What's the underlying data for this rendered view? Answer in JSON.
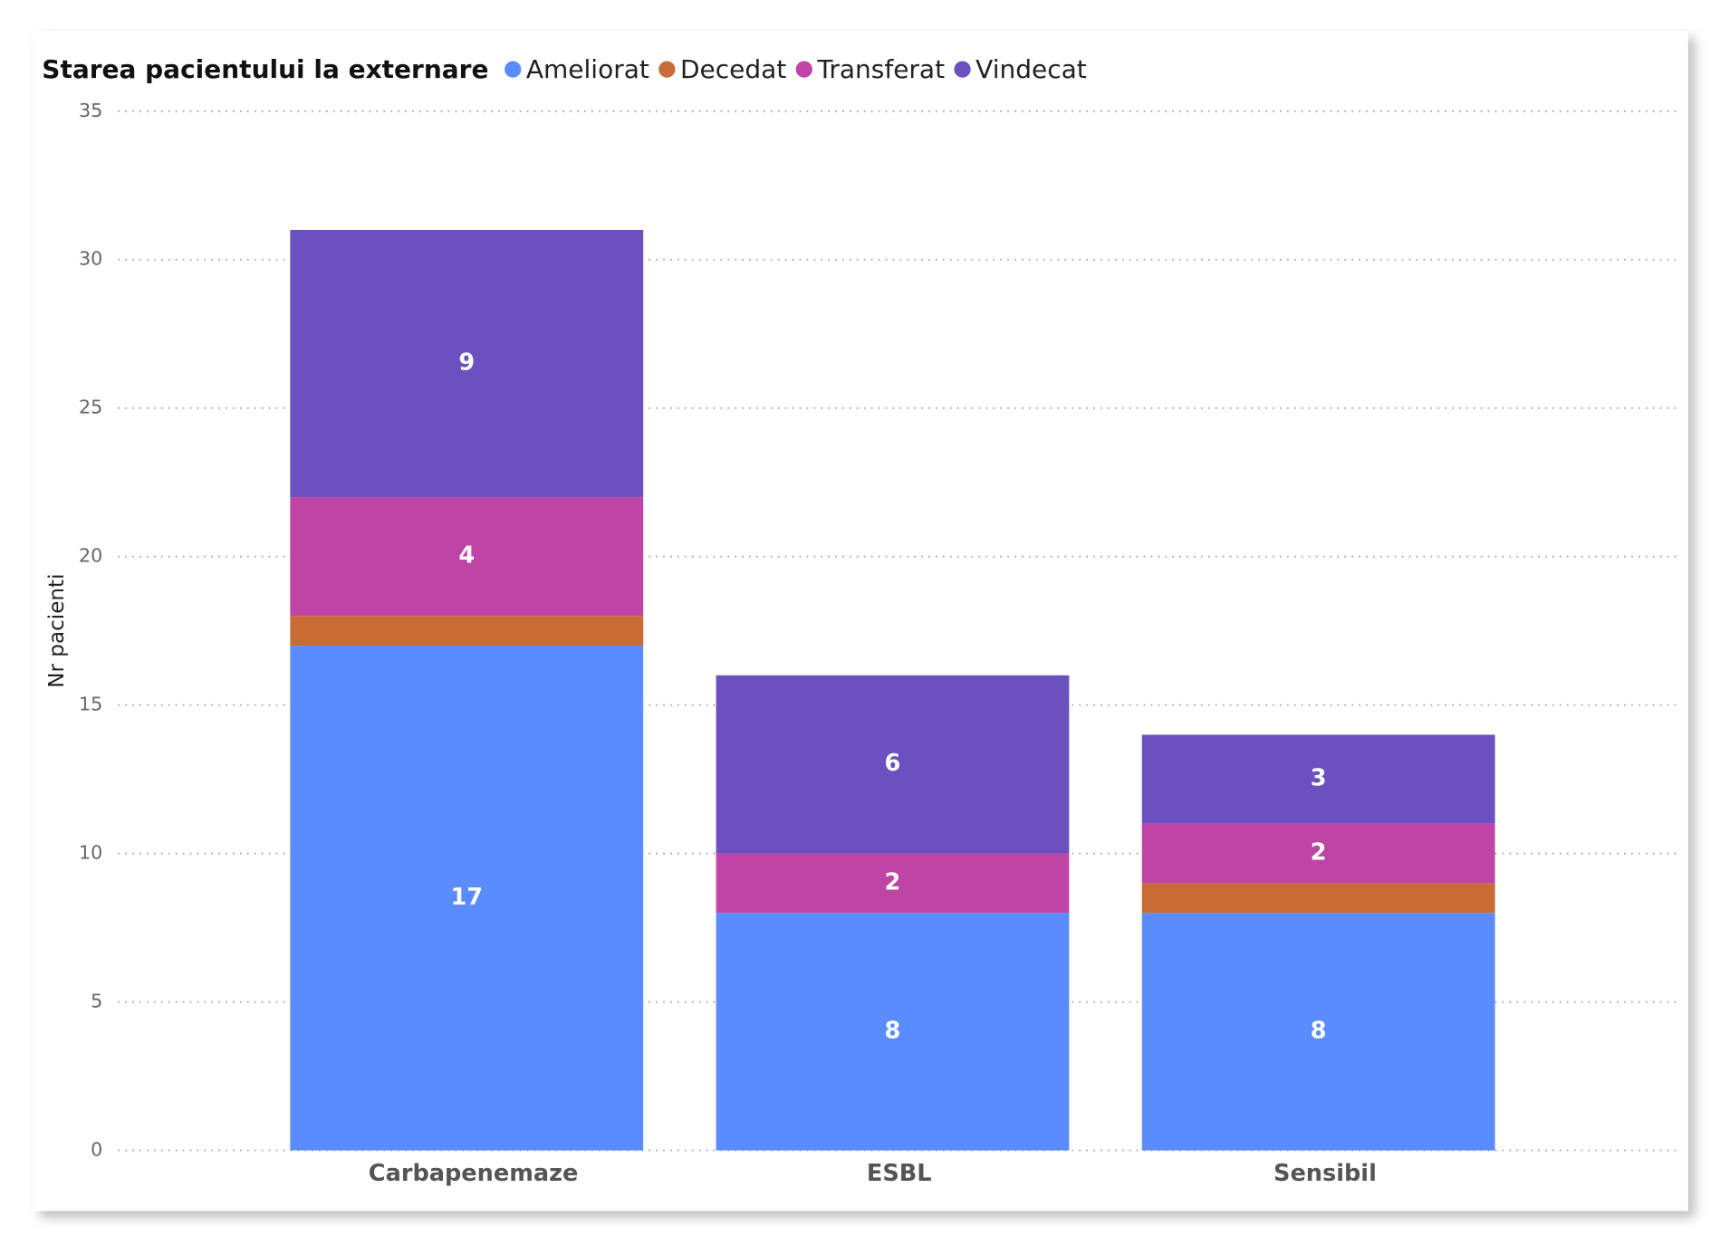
{
  "chart_data": {
    "type": "stacked_bar",
    "legend_title": "Starea pacientului la externare",
    "y_label": "Nr pacienti",
    "categories": [
      "Carbapenemaze",
      "ESBL",
      "Sensibil"
    ],
    "series": [
      {
        "name": "Ameliorat",
        "color": "#5b8cff",
        "values": [
          17,
          8,
          8
        ]
      },
      {
        "name": "Decedat",
        "color": "#c96b35",
        "values": [
          1,
          0,
          1
        ]
      },
      {
        "name": "Transferat",
        "color": "#c043a6",
        "values": [
          4,
          2,
          2
        ]
      },
      {
        "name": "Vindecat",
        "color": "#6b50c0",
        "values": [
          9,
          6,
          3
        ]
      }
    ],
    "ylim": [
      0,
      35
    ],
    "yticks": [
      0,
      5,
      10,
      15,
      20,
      25,
      30,
      35
    ],
    "grid": true,
    "legend_position": "top-left"
  }
}
